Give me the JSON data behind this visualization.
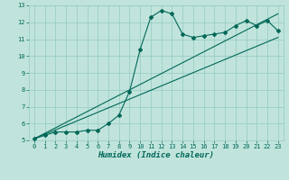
{
  "xlabel": "Humidex (Indice chaleur)",
  "xlim": [
    -0.5,
    23.5
  ],
  "ylim": [
    5,
    13
  ],
  "xticks": [
    0,
    1,
    2,
    3,
    4,
    5,
    6,
    7,
    8,
    9,
    10,
    11,
    12,
    13,
    14,
    15,
    16,
    17,
    18,
    19,
    20,
    21,
    22,
    23
  ],
  "yticks": [
    5,
    6,
    7,
    8,
    9,
    10,
    11,
    12,
    13
  ],
  "bg_color": "#c0e4dc",
  "grid_color": "#9acec4",
  "line_color": "#006858",
  "line1_x": [
    0,
    1,
    2,
    3,
    4,
    5,
    6,
    7,
    8,
    9,
    10,
    11,
    12,
    13,
    14,
    15,
    16,
    17,
    18,
    19,
    20,
    21,
    22,
    23
  ],
  "line1_y": [
    5.1,
    5.3,
    5.5,
    5.5,
    5.5,
    5.6,
    5.6,
    6.0,
    6.5,
    7.9,
    10.4,
    12.3,
    12.7,
    12.5,
    11.3,
    11.1,
    11.2,
    11.3,
    11.4,
    11.8,
    12.1,
    11.8,
    12.1,
    11.5
  ],
  "line2_x": [
    0,
    23
  ],
  "line2_y": [
    5.1,
    11.1
  ],
  "line3_x": [
    0,
    23
  ],
  "line3_y": [
    5.1,
    12.5
  ],
  "tick_fontsize": 5.0,
  "xlabel_fontsize": 6.5
}
